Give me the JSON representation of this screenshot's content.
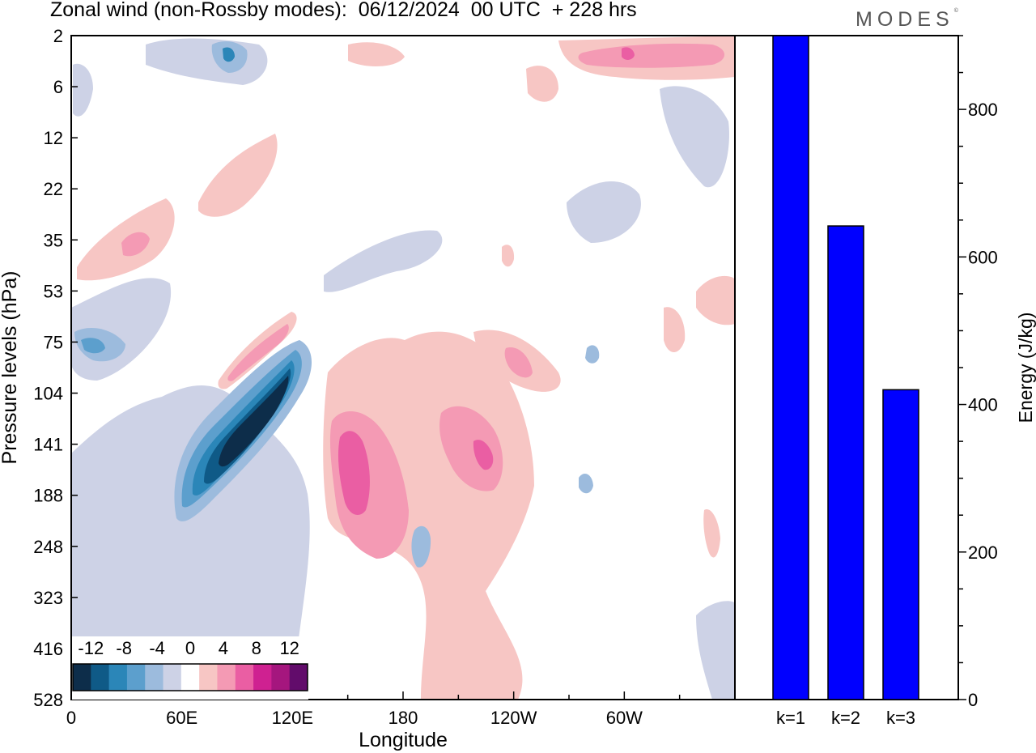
{
  "header": {
    "title": "Zonal wind (non-Rossby modes):  06/12/2024  00 UTC  + 228 hrs",
    "brand": "MODES",
    "brand_mark": "©"
  },
  "chart_data": [
    {
      "type": "heatmap",
      "title": "Zonal wind (non-Rossby modes):  06/12/2024  00 UTC  + 228 hrs",
      "xlabel": "Longitude",
      "ylabel": "Pressure levels (hPa)",
      "x_ticks": [
        "0",
        "60E",
        "120E",
        "180",
        "120W",
        "60W"
      ],
      "x_tick_values": [
        0,
        60,
        120,
        180,
        240,
        300
      ],
      "xlim": [
        0,
        360
      ],
      "y_ticks": [
        "2",
        "6",
        "12",
        "22",
        "35",
        "53",
        "75",
        "104",
        "141",
        "188",
        "248",
        "323",
        "416",
        "528"
      ],
      "y_scale": "pressure levels (top = 2 hPa, bottom = 528 hPa)",
      "colorbar": {
        "labels": [
          "-12",
          "-8",
          "-4",
          "0",
          "4",
          "8",
          "12"
        ],
        "colors": [
          "#0d2d4a",
          "#0f5a87",
          "#2b86b8",
          "#5c9fcd",
          "#9cbbdd",
          "#cdd2e6",
          "#ffffff",
          "#f7c6c4",
          "#f49ab4",
          "#ea5ea3",
          "#cf2191",
          "#a5167e",
          "#620c6b"
        ]
      },
      "contour_features": [
        {
          "sign": "negative",
          "peak": "-12",
          "lon_range": [
            50,
            120
          ],
          "levels": "104-188 hPa"
        },
        {
          "sign": "positive",
          "peak": "8",
          "lon_range": [
            140,
            240
          ],
          "levels": "104-248 hPa"
        },
        {
          "sign": "positive",
          "peak": "8",
          "lon_range": [
            80,
            120
          ],
          "levels": "75-104 hPa"
        },
        {
          "sign": "negative",
          "peak": "-6",
          "lon_range": [
            0,
            50
          ],
          "levels": "53-104 hPa"
        },
        {
          "sign": "positive",
          "peak": "6",
          "lon_range": [
            270,
            360
          ],
          "levels": "2-6 hPa"
        },
        {
          "sign": "negative",
          "peak": "-6",
          "lon_range": [
            70,
            100
          ],
          "levels": "2-6 hPa"
        }
      ]
    },
    {
      "type": "bar",
      "categories": [
        "k=1",
        "k=2",
        "k=3"
      ],
      "values": [
        900,
        642,
        420
      ],
      "ylabel": "Energy (J/kg)",
      "y_ticks": [
        "0",
        "200",
        "400",
        "600",
        "800"
      ],
      "ylim": [
        0,
        900
      ],
      "bar_color": "#0000ff"
    }
  ]
}
